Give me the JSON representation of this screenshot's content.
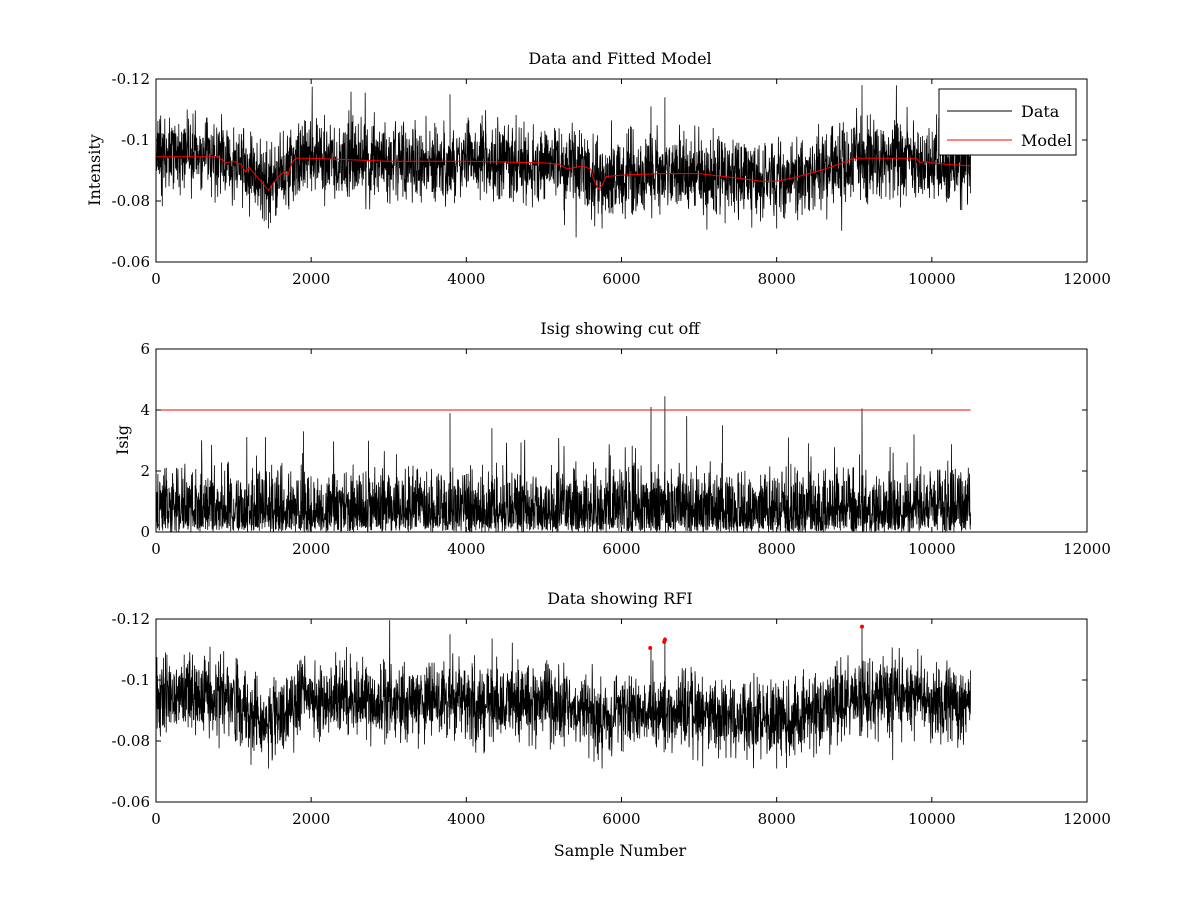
{
  "chart_data": [
    {
      "type": "line",
      "title": "Data and Fitted Model",
      "xlabel": "",
      "ylabel": "Intensity",
      "xlim": [
        0,
        12000
      ],
      "ylim": [
        -0.12,
        -0.06
      ],
      "y_reversed": true,
      "xticks": [
        0,
        2000,
        4000,
        6000,
        8000,
        10000,
        12000
      ],
      "yticks": [
        -0.06,
        -0.08,
        -0.1,
        -0.12
      ],
      "xtick_labels": [
        "0",
        "2000",
        "4000",
        "6000",
        "8000",
        "10000",
        "12000"
      ],
      "ytick_labels": [
        "-0.06",
        "-0.08",
        "-0.1",
        "-0.12"
      ],
      "grid": false,
      "legend": {
        "placement": "top-right",
        "entries": [
          "Data",
          "Model"
        ]
      },
      "series": [
        {
          "name": "Data",
          "color": "#000000",
          "style": "noisy",
          "x": [
            0,
            800,
            1100,
            1200,
            1300,
            1400,
            1500,
            1600,
            1700,
            1800,
            2000,
            3000,
            4000,
            5000,
            5200,
            5500,
            5650,
            5700,
            5800,
            6000,
            7000,
            7500,
            7800,
            8000,
            8500,
            9000,
            9500,
            9800,
            10000,
            10500
          ],
          "center": [
            -0.095,
            -0.095,
            -0.092,
            -0.09,
            -0.088,
            -0.085,
            -0.086,
            -0.089,
            -0.09,
            -0.094,
            -0.094,
            -0.093,
            -0.093,
            -0.092,
            -0.091,
            -0.091,
            -0.087,
            -0.085,
            -0.088,
            -0.089,
            -0.089,
            -0.088,
            -0.087,
            -0.087,
            -0.089,
            -0.094,
            -0.094,
            -0.094,
            -0.093,
            -0.092
          ],
          "noise_amplitude": 0.013,
          "spikes": [
            [
              3790,
              -0.115
            ],
            [
              6380,
              -0.111
            ],
            [
              6560,
              -0.114
            ],
            [
              9100,
              -0.118
            ],
            [
              1450,
              -0.071
            ],
            [
              5750,
              -0.071
            ],
            [
              8000,
              -0.071
            ]
          ]
        },
        {
          "name": "Model",
          "color": "#ff0000",
          "x": [
            0,
            800,
            900,
            1000,
            1100,
            1150,
            1200,
            1300,
            1400,
            1450,
            1500,
            1600,
            1650,
            1700,
            1750,
            1800,
            2000,
            3000,
            4000,
            5000,
            5200,
            5300,
            5500,
            5600,
            5650,
            5700,
            5750,
            5800,
            6000,
            6500,
            7000,
            7500,
            7800,
            8000,
            8200,
            8500,
            8800,
            9000,
            9500,
            9800,
            9850,
            9900,
            10000,
            10200,
            10500
          ],
          "y": [
            -0.0945,
            -0.0945,
            -0.0925,
            -0.093,
            -0.092,
            -0.0895,
            -0.091,
            -0.088,
            -0.085,
            -0.0835,
            -0.0855,
            -0.0885,
            -0.0895,
            -0.0885,
            -0.0925,
            -0.094,
            -0.094,
            -0.093,
            -0.093,
            -0.0925,
            -0.092,
            -0.0905,
            -0.0915,
            -0.0905,
            -0.0865,
            -0.084,
            -0.085,
            -0.088,
            -0.0885,
            -0.089,
            -0.089,
            -0.0875,
            -0.0865,
            -0.0865,
            -0.0875,
            -0.0895,
            -0.092,
            -0.094,
            -0.094,
            -0.094,
            -0.0925,
            -0.093,
            -0.0925,
            -0.092,
            -0.0915
          ]
        }
      ]
    },
    {
      "type": "line",
      "title": "Isig showing cut off",
      "xlabel": "",
      "ylabel": "Isig",
      "xlim": [
        0,
        12000
      ],
      "ylim": [
        0,
        6
      ],
      "xticks": [
        0,
        2000,
        4000,
        6000,
        8000,
        10000,
        12000
      ],
      "yticks": [
        0,
        2,
        4,
        6
      ],
      "xtick_labels": [
        "0",
        "2000",
        "4000",
        "6000",
        "8000",
        "10000",
        "12000"
      ],
      "ytick_labels": [
        "0",
        "2",
        "4",
        "6"
      ],
      "grid": false,
      "series": [
        {
          "name": "Isig",
          "color": "#000000",
          "style": "noisy-positive",
          "x_range": [
            0,
            10500
          ],
          "typical_max": 2.6,
          "spikes": [
            [
              3790,
              3.9
            ],
            [
              6380,
              4.1
            ],
            [
              6560,
              4.45
            ],
            [
              6840,
              3.8
            ],
            [
              9100,
              4.05
            ],
            [
              1900,
              3.3
            ],
            [
              4330,
              3.4
            ],
            [
              7300,
              3.5
            ],
            [
              9770,
              3.2
            ]
          ]
        },
        {
          "name": "cutoff",
          "color": "#ff0000",
          "x": [
            0,
            10500
          ],
          "y": [
            4,
            4
          ]
        }
      ]
    },
    {
      "type": "line",
      "title": "Data showing RFI",
      "xlabel": "Sample Number",
      "ylabel": "",
      "xlim": [
        0,
        12000
      ],
      "ylim": [
        -0.12,
        -0.06
      ],
      "y_reversed": true,
      "xticks": [
        0,
        2000,
        4000,
        6000,
        8000,
        10000,
        12000
      ],
      "yticks": [
        -0.06,
        -0.08,
        -0.1,
        -0.12
      ],
      "xtick_labels": [
        "0",
        "2000",
        "4000",
        "6000",
        "8000",
        "10000",
        "12000"
      ],
      "ytick_labels": [
        "-0.06",
        "-0.08",
        "-0.1",
        "-0.12"
      ],
      "grid": false,
      "series": [
        {
          "name": "Data",
          "color": "#000000",
          "style": "noisy",
          "x": [
            0,
            800,
            1100,
            1200,
            1300,
            1400,
            1500,
            1600,
            1700,
            1800,
            2000,
            3000,
            4000,
            5000,
            5200,
            5500,
            5650,
            5700,
            5800,
            6000,
            7000,
            7500,
            7800,
            8000,
            8500,
            9000,
            9500,
            9800,
            10000,
            10500
          ],
          "center": [
            -0.095,
            -0.095,
            -0.092,
            -0.09,
            -0.088,
            -0.085,
            -0.086,
            -0.089,
            -0.09,
            -0.094,
            -0.094,
            -0.093,
            -0.093,
            -0.092,
            -0.091,
            -0.091,
            -0.087,
            -0.085,
            -0.088,
            -0.089,
            -0.089,
            -0.088,
            -0.087,
            -0.087,
            -0.089,
            -0.094,
            -0.094,
            -0.094,
            -0.093,
            -0.092
          ],
          "noise_amplitude": 0.013,
          "spikes": [
            [
              3790,
              -0.115
            ],
            [
              6380,
              -0.111
            ],
            [
              6560,
              -0.114
            ],
            [
              9100,
              -0.118
            ],
            [
              1450,
              -0.071
            ],
            [
              5750,
              -0.071
            ],
            [
              8000,
              -0.071
            ]
          ]
        },
        {
          "name": "RFI",
          "color": "#ff0000",
          "style": "markers",
          "x": [
            6370,
            6550,
            6560,
            9100
          ],
          "y": [
            -0.1105,
            -0.1125,
            -0.1132,
            -0.1175
          ]
        }
      ]
    }
  ]
}
